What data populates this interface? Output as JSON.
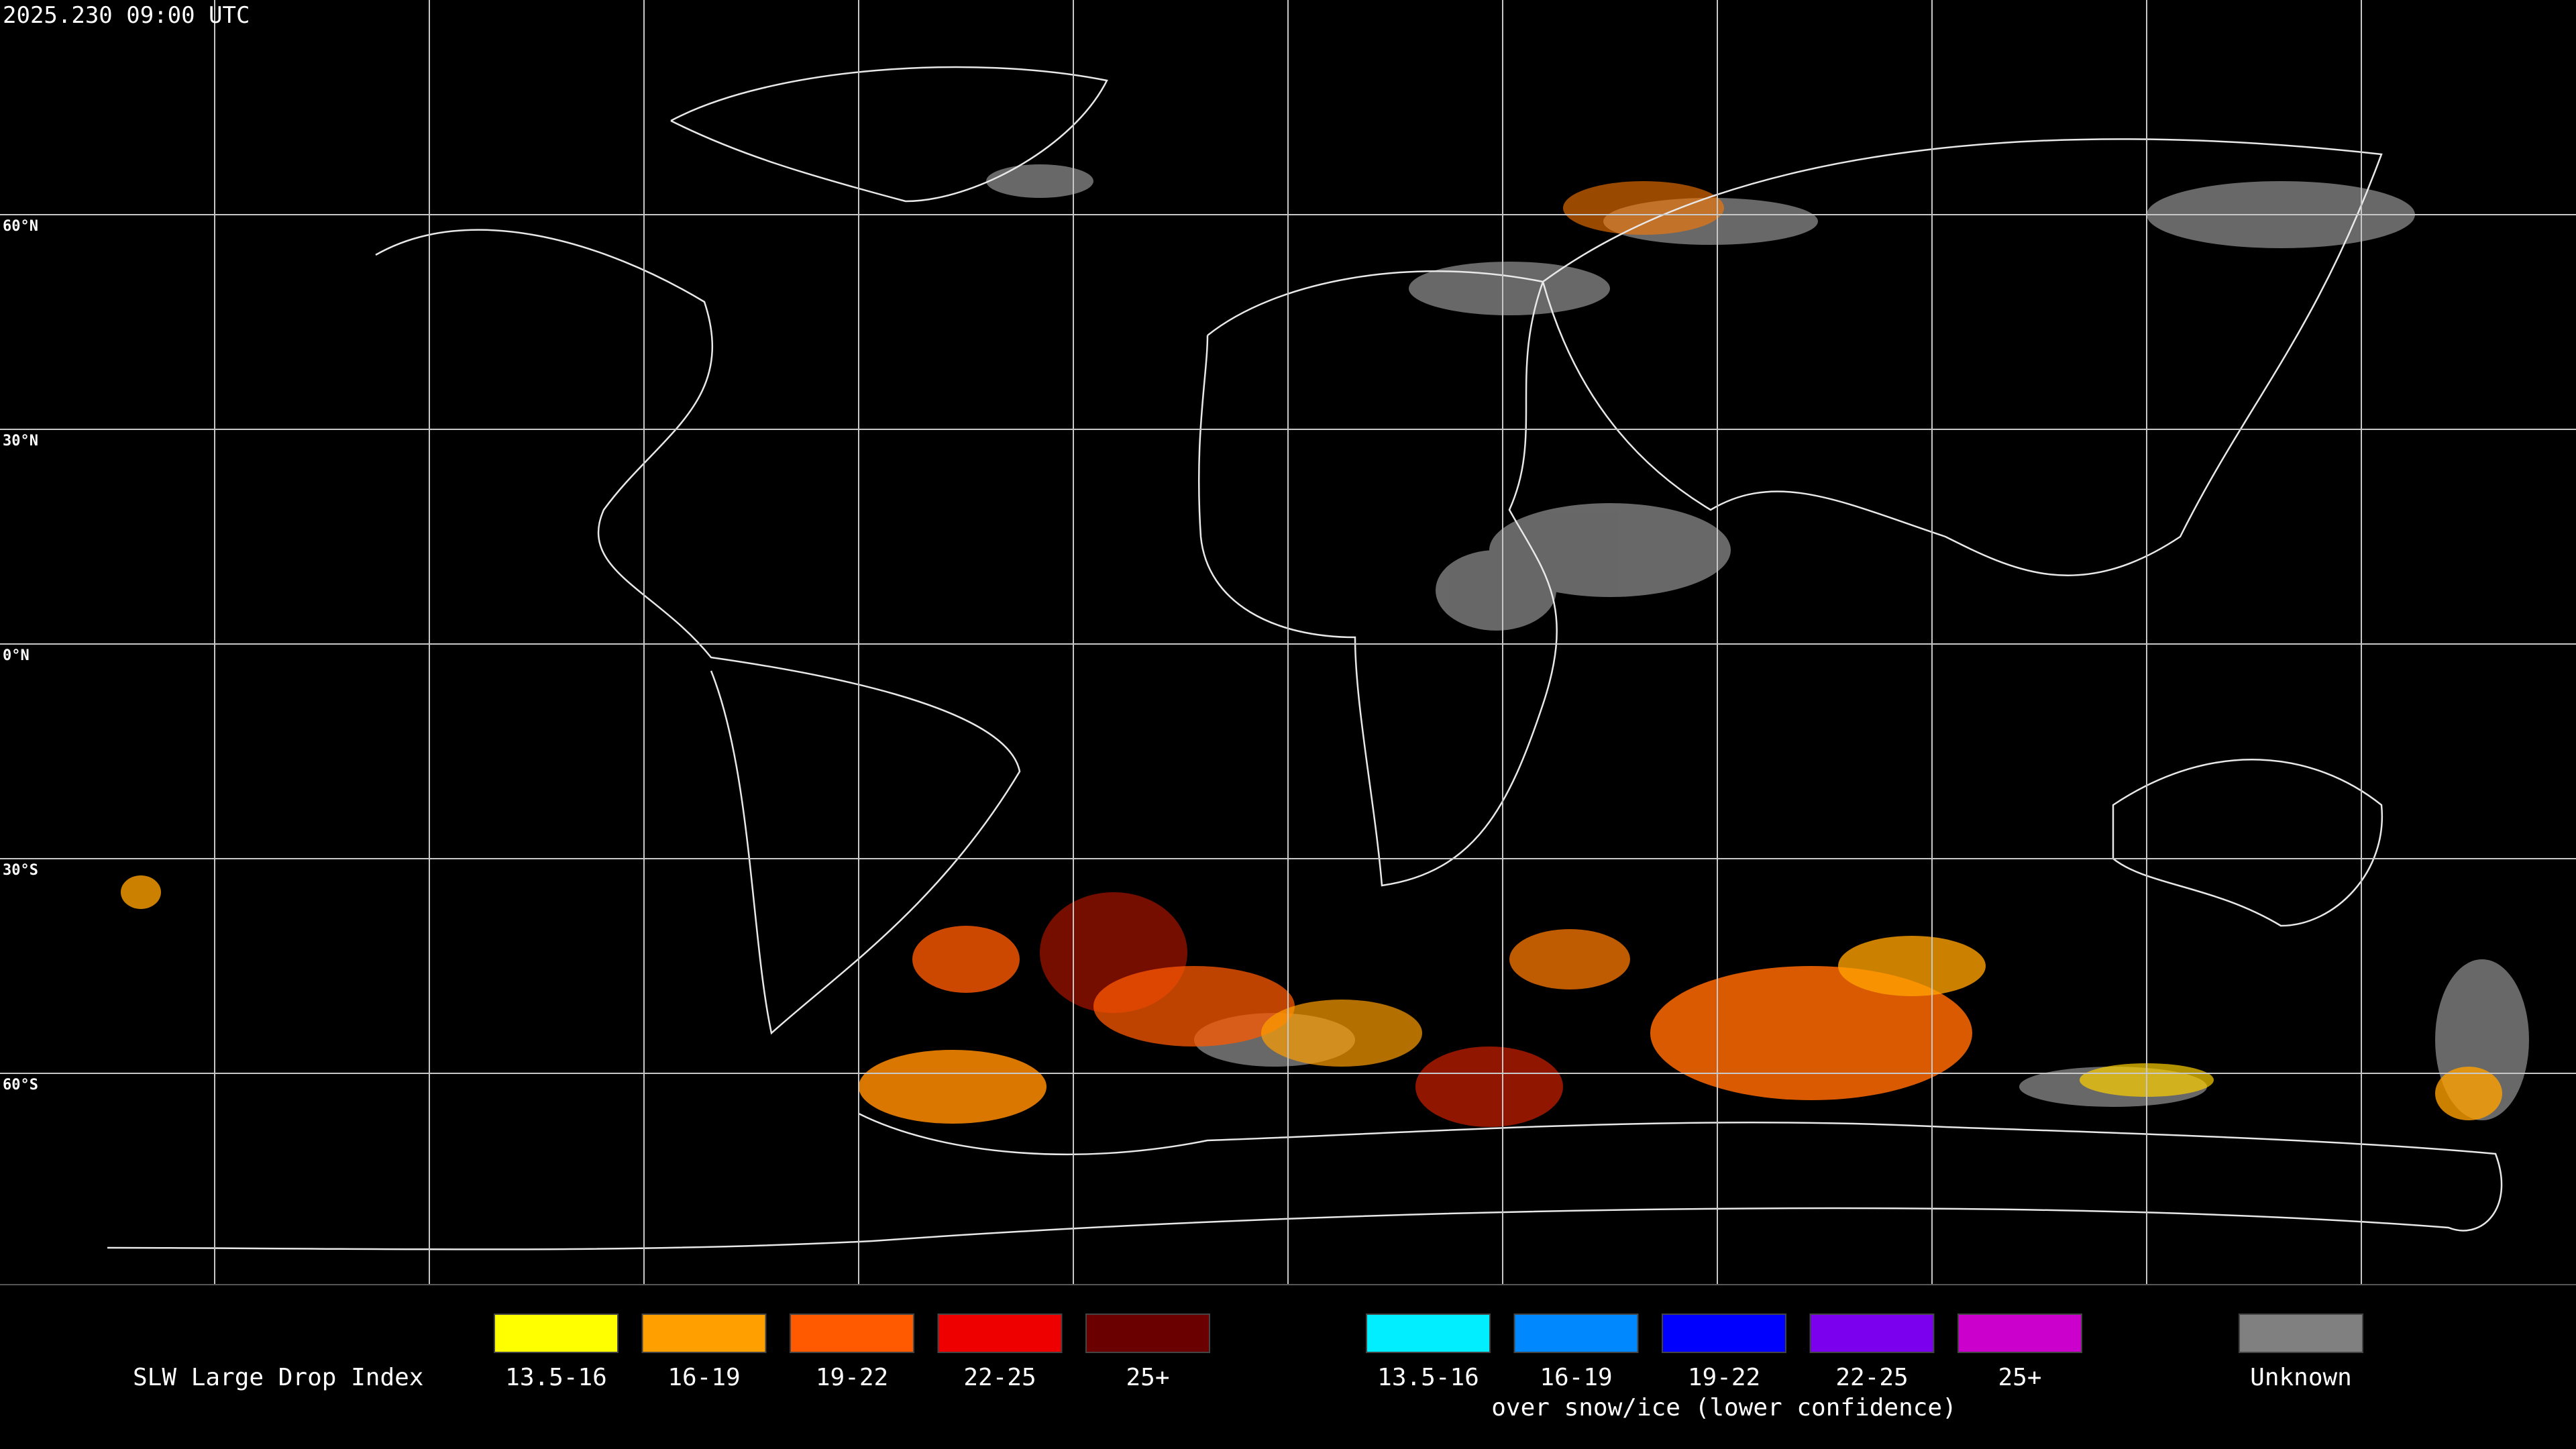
{
  "header": {
    "timestamp": "2025.230 09:00 UTC"
  },
  "map": {
    "lat_labels": [
      "60°N",
      "30°N",
      "0°N",
      "30°S",
      "60°S"
    ]
  },
  "legend": {
    "title": "SLW Large Drop Index",
    "standard": [
      {
        "label": "13.5-16",
        "color": "#ffff00"
      },
      {
        "label": "16-19",
        "color": "#ffa000"
      },
      {
        "label": "19-22",
        "color": "#ff5a00"
      },
      {
        "label": "22-25",
        "color": "#ee0000"
      },
      {
        "label": "25+",
        "color": "#6a0000"
      }
    ],
    "snow_ice": [
      {
        "label": "13.5-16",
        "color": "#00eeff"
      },
      {
        "label": "16-19",
        "color": "#0088ff"
      },
      {
        "label": "19-22",
        "color": "#0000ff"
      },
      {
        "label": "22-25",
        "color": "#7a00ee"
      },
      {
        "label": "25+",
        "color": "#cc00cc"
      }
    ],
    "snow_ice_caption": "over snow/ice (lower confidence)",
    "unknown": {
      "label": "Unknown",
      "color": "#808080"
    }
  }
}
